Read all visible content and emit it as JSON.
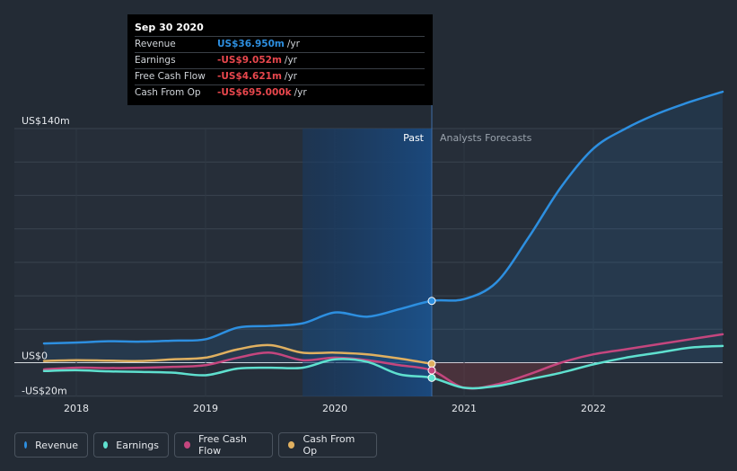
{
  "tooltip": {
    "date": "Sep 30 2020",
    "rows": [
      {
        "label": "Revenue",
        "value": "US$36.950m",
        "unit": "/yr",
        "color": "#2d8fe0"
      },
      {
        "label": "Earnings",
        "value": "-US$9.052m",
        "unit": "/yr",
        "color": "#e8474d"
      },
      {
        "label": "Free Cash Flow",
        "value": "-US$4.621m",
        "unit": "/yr",
        "color": "#e8474d"
      },
      {
        "label": "Cash From Op",
        "value": "-US$695.000k",
        "unit": "/yr",
        "color": "#e8474d"
      }
    ]
  },
  "legend": [
    {
      "label": "Revenue",
      "color": "#2d8fe0"
    },
    {
      "label": "Earnings",
      "color": "#5fe0cf"
    },
    {
      "label": "Free Cash Flow",
      "color": "#c4467e"
    },
    {
      "label": "Cash From Op",
      "color": "#e0b060"
    }
  ],
  "chart_data": {
    "type": "line",
    "y_tick_labels": [
      "US$140m",
      "US$0",
      "-US$20m"
    ],
    "ylim": [
      -20,
      140
    ],
    "xlim": [
      2017.7,
      2023.0
    ],
    "x_ticks": [
      2018,
      2019,
      2020,
      2021,
      2022
    ],
    "x_tick_labels": [
      "2018",
      "2019",
      "2020",
      "2021",
      "2022"
    ],
    "past_label": "Past",
    "forecast_label": "Analysts Forecasts",
    "divider_x": 2020.75,
    "highlight_range": [
      2019.75,
      2020.75
    ],
    "series": [
      {
        "name": "Revenue",
        "color": "#2d8fe0",
        "points": [
          [
            2017.75,
            11.5
          ],
          [
            2018,
            12
          ],
          [
            2018.25,
            12.8
          ],
          [
            2018.5,
            12.6
          ],
          [
            2018.75,
            13.2
          ],
          [
            2019,
            14
          ],
          [
            2019.25,
            21
          ],
          [
            2019.5,
            22
          ],
          [
            2019.75,
            23.5
          ],
          [
            2020,
            30
          ],
          [
            2020.25,
            27.5
          ],
          [
            2020.5,
            32
          ],
          [
            2020.75,
            36.95
          ],
          [
            2021,
            38
          ],
          [
            2021.25,
            48
          ],
          [
            2021.5,
            75
          ],
          [
            2021.75,
            105
          ],
          [
            2022,
            128
          ],
          [
            2022.25,
            140
          ],
          [
            2022.5,
            149
          ],
          [
            2022.75,
            156
          ],
          [
            2023.0,
            162
          ]
        ]
      },
      {
        "name": "Earnings",
        "color": "#5fe0cf",
        "points": [
          [
            2017.75,
            -5
          ],
          [
            2018,
            -4.5
          ],
          [
            2018.25,
            -5.2
          ],
          [
            2018.5,
            -5.5
          ],
          [
            2018.75,
            -6
          ],
          [
            2019,
            -7.5
          ],
          [
            2019.25,
            -3.5
          ],
          [
            2019.5,
            -3
          ],
          [
            2019.75,
            -3
          ],
          [
            2020,
            2
          ],
          [
            2020.25,
            0.5
          ],
          [
            2020.5,
            -7
          ],
          [
            2020.75,
            -9.05
          ],
          [
            2021,
            -15
          ],
          [
            2021.25,
            -14
          ],
          [
            2021.5,
            -10
          ],
          [
            2021.75,
            -6
          ],
          [
            2022,
            -1
          ],
          [
            2022.25,
            3
          ],
          [
            2022.5,
            6
          ],
          [
            2022.75,
            9
          ],
          [
            2023.0,
            10
          ]
        ]
      },
      {
        "name": "Free Cash Flow",
        "color": "#c4467e",
        "points": [
          [
            2017.75,
            -4
          ],
          [
            2018,
            -3
          ],
          [
            2018.25,
            -3.2
          ],
          [
            2018.5,
            -3
          ],
          [
            2018.75,
            -2.5
          ],
          [
            2019,
            -1.5
          ],
          [
            2019.25,
            3
          ],
          [
            2019.5,
            6
          ],
          [
            2019.75,
            1.5
          ],
          [
            2020,
            3
          ],
          [
            2020.25,
            1.5
          ],
          [
            2020.5,
            -1.5
          ],
          [
            2020.75,
            -4.62
          ],
          [
            2021,
            -15
          ],
          [
            2021.25,
            -13
          ],
          [
            2021.5,
            -7
          ],
          [
            2021.75,
            0
          ],
          [
            2022,
            5
          ],
          [
            2022.25,
            8
          ],
          [
            2022.5,
            11
          ],
          [
            2022.75,
            14
          ],
          [
            2023.0,
            17
          ]
        ]
      },
      {
        "name": "Cash From Op",
        "color": "#e0b060",
        "points": [
          [
            2017.75,
            1
          ],
          [
            2018,
            1.5
          ],
          [
            2018.25,
            1.2
          ],
          [
            2018.5,
            1
          ],
          [
            2018.75,
            2
          ],
          [
            2019,
            3
          ],
          [
            2019.25,
            8
          ],
          [
            2019.5,
            10.5
          ],
          [
            2019.75,
            6
          ],
          [
            2020,
            6
          ],
          [
            2020.25,
            5
          ],
          [
            2020.5,
            2.5
          ],
          [
            2020.75,
            -0.7
          ]
        ]
      }
    ]
  }
}
